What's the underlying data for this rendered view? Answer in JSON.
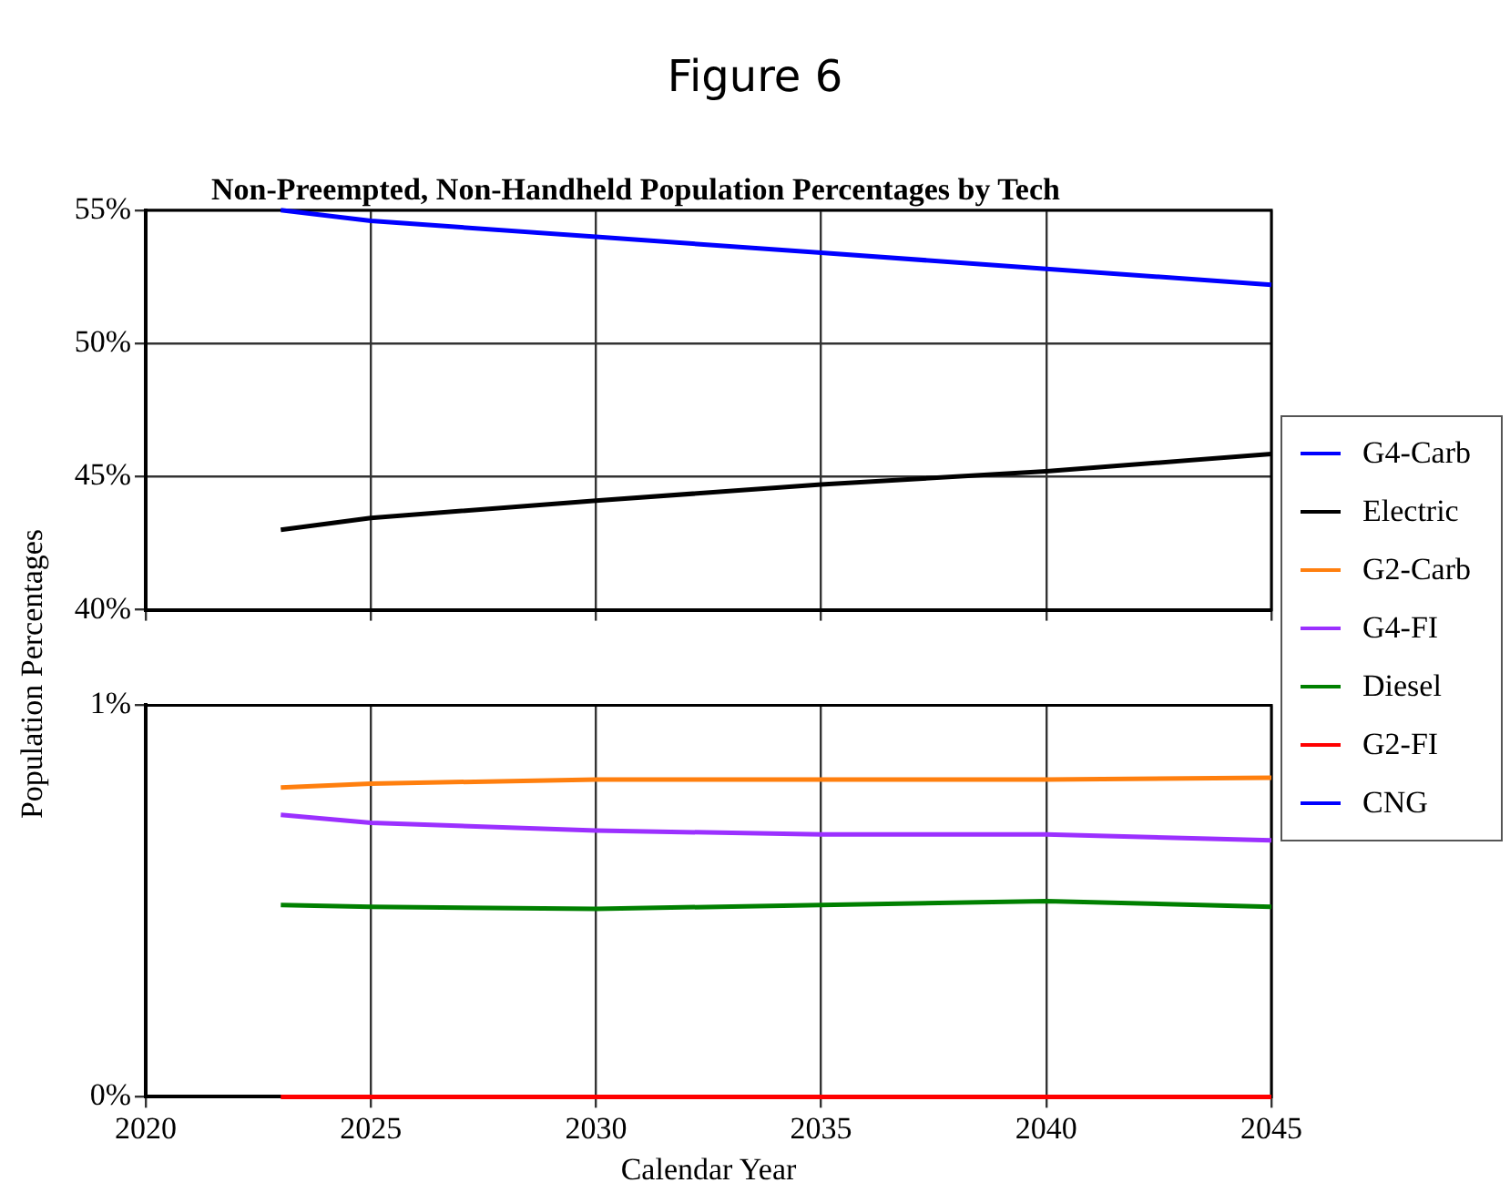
{
  "chart_data": [
    {
      "type": "line",
      "title": "Non-Preempted, Non-Handheld Population Percentages by Tech",
      "annotations": [
        "Figure 6"
      ],
      "x": [
        2023,
        2025,
        2030,
        2035,
        2040,
        2045
      ],
      "xlim": [
        2020,
        2045
      ],
      "xticks": [
        2020,
        2025,
        2030,
        2035,
        2040,
        2045
      ],
      "ylim": [
        40,
        55
      ],
      "yticks": [
        {
          "value": 40,
          "label": "40%"
        },
        {
          "value": 45,
          "label": "45%"
        },
        {
          "value": 50,
          "label": "50%"
        },
        {
          "value": 55,
          "label": "55%"
        }
      ],
      "grid": true,
      "tick_labels": "y",
      "legend": "right",
      "line_style": "solid",
      "series": [
        {
          "name": "G4-Carb",
          "color": "#0000ff",
          "values": [
            55.0,
            54.6,
            54.0,
            53.4,
            52.8,
            52.2
          ]
        },
        {
          "name": "Electric",
          "color": "#000000",
          "values": [
            43.0,
            43.45,
            44.1,
            44.7,
            45.2,
            45.85
          ]
        }
      ]
    },
    {
      "type": "line",
      "xlabel": "Calendar Year",
      "ylabel": "Population Percentages",
      "x": [
        2023,
        2025,
        2030,
        2035,
        2040,
        2045
      ],
      "xlim": [
        2020,
        2045
      ],
      "xticks": [
        2020,
        2025,
        2030,
        2035,
        2040,
        2045
      ],
      "ylim": [
        0,
        1
      ],
      "yticks": [
        {
          "value": 0,
          "label": "0%"
        },
        {
          "value": 1,
          "label": "1%"
        }
      ],
      "grid": true,
      "legend": "right",
      "line_style": "solid",
      "series": [
        {
          "name": "G2-Carb",
          "color": "#ff7f0e",
          "values": [
            0.79,
            0.8,
            0.81,
            0.81,
            0.81,
            0.815
          ]
        },
        {
          "name": "G4-FI",
          "color": "#9b30ff",
          "values": [
            0.72,
            0.7,
            0.68,
            0.67,
            0.67,
            0.655
          ]
        },
        {
          "name": "Diesel",
          "color": "#008000",
          "values": [
            0.49,
            0.485,
            0.48,
            0.49,
            0.5,
            0.485
          ]
        },
        {
          "name": "G2-FI",
          "color": "#ff0000",
          "values": [
            0,
            0,
            0,
            0,
            0,
            0
          ]
        },
        {
          "name": "CNG",
          "color": "#0000ff",
          "values": [
            null,
            null,
            null,
            null,
            null,
            null
          ]
        }
      ]
    }
  ]
}
